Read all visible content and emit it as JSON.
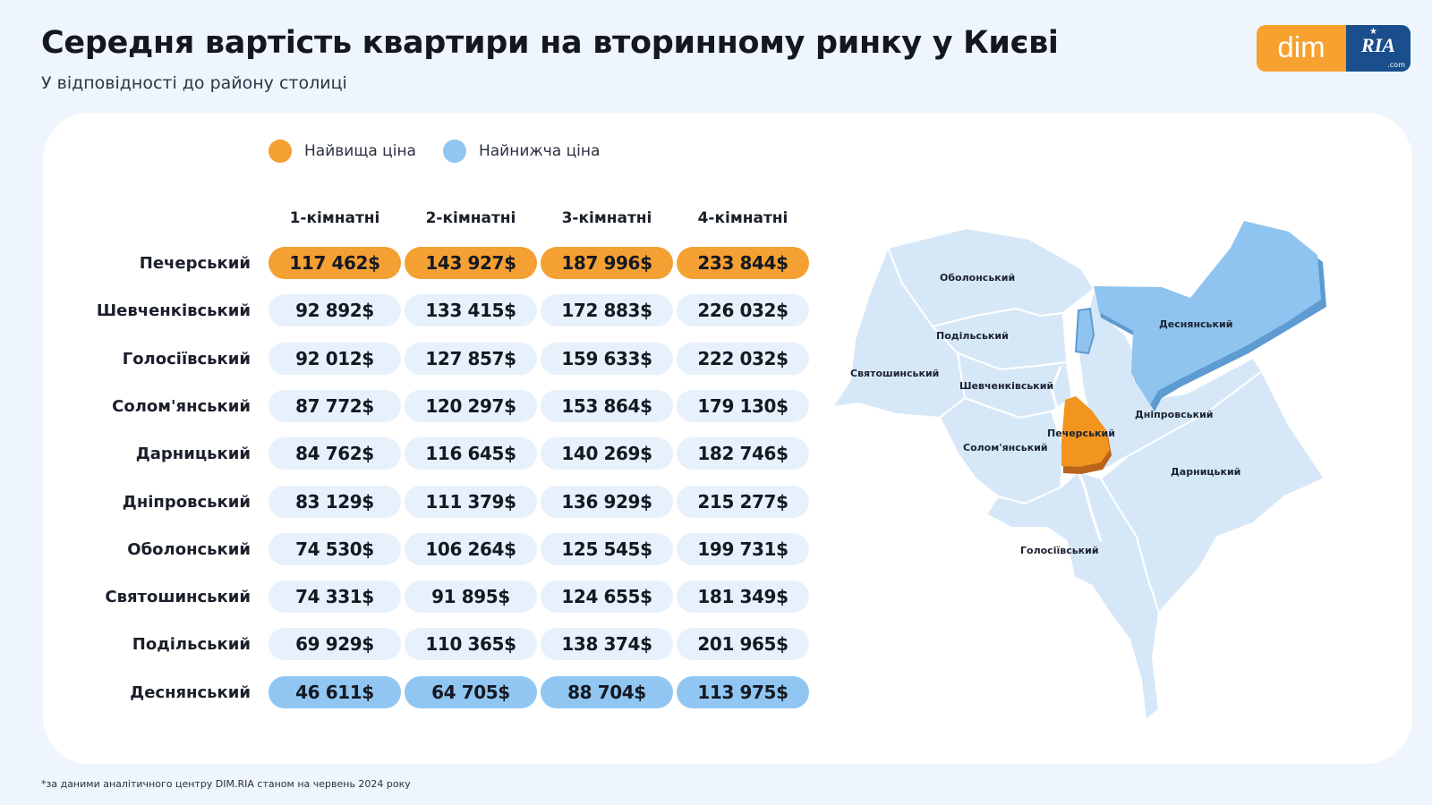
{
  "header": {
    "title": "Середня вартість квартири на вторинному ринку у Києві",
    "subtitle": "У відповідності до району столиці"
  },
  "logo": {
    "dim": "dim",
    "ria": "RIA",
    "com": ".com"
  },
  "legend": {
    "highest": {
      "label": "Найвища ціна",
      "color": "#f4a032"
    },
    "lowest": {
      "label": "Найнижча ціна",
      "color": "#90c6f1"
    }
  },
  "colors": {
    "default_pill": "#e6f1fc",
    "map_fill": "#d6e8f8",
    "map_low": "#8ec4ef",
    "map_high": "#f2951f"
  },
  "chart_data": {
    "type": "table",
    "columns": [
      "1-кімнатні",
      "2-кімнатні",
      "3-кімнатні",
      "4-кімнатні"
    ],
    "rows": [
      {
        "district": "Печерський",
        "values": [
          "117 462$",
          "143 927$",
          "187 996$",
          "233 844$"
        ],
        "highlight": "highest"
      },
      {
        "district": "Шевченківський",
        "values": [
          "92 892$",
          "133 415$",
          "172 883$",
          "226 032$"
        ],
        "highlight": ""
      },
      {
        "district": "Голосіївський",
        "values": [
          "92 012$",
          "127 857$",
          "159 633$",
          "222 032$"
        ],
        "highlight": ""
      },
      {
        "district": "Солом'янський",
        "values": [
          "87 772$",
          "120 297$",
          "153 864$",
          "179 130$"
        ],
        "highlight": ""
      },
      {
        "district": "Дарницький",
        "values": [
          "84 762$",
          "116 645$",
          "140 269$",
          "182 746$"
        ],
        "highlight": ""
      },
      {
        "district": "Дніпровський",
        "values": [
          "83 129$",
          "111 379$",
          "136 929$",
          "215 277$"
        ],
        "highlight": ""
      },
      {
        "district": "Оболонський",
        "values": [
          "74 530$",
          "106 264$",
          "125 545$",
          "199 731$"
        ],
        "highlight": ""
      },
      {
        "district": "Святошинський",
        "values": [
          "74 331$",
          "91 895$",
          "124 655$",
          "181 349$"
        ],
        "highlight": ""
      },
      {
        "district": "Подільський",
        "values": [
          "69 929$",
          "110 365$",
          "138 374$",
          "201 965$"
        ],
        "highlight": ""
      },
      {
        "district": "Деснянський",
        "values": [
          "46 611$",
          "64 705$",
          "88 704$",
          "113 975$"
        ],
        "highlight": "lowest"
      }
    ]
  },
  "map": {
    "labels": {
      "obolonskyi": "Оболонський",
      "podilskyi": "Подільський",
      "sviatoshynskyi": "Святошинський",
      "shevchenkivskyi": "Шевченківський",
      "solomianskyi": "Солом'янський",
      "pecherskyi": "Печерський",
      "desnianskyi": "Деснянський",
      "dniprovskyi": "Дніпровський",
      "darnytskyi": "Дарницький",
      "holosiivskyi": "Голосіївський"
    }
  },
  "footnote": "*за даними аналітичного центру DIM.RIA станом на червень 2024 року"
}
